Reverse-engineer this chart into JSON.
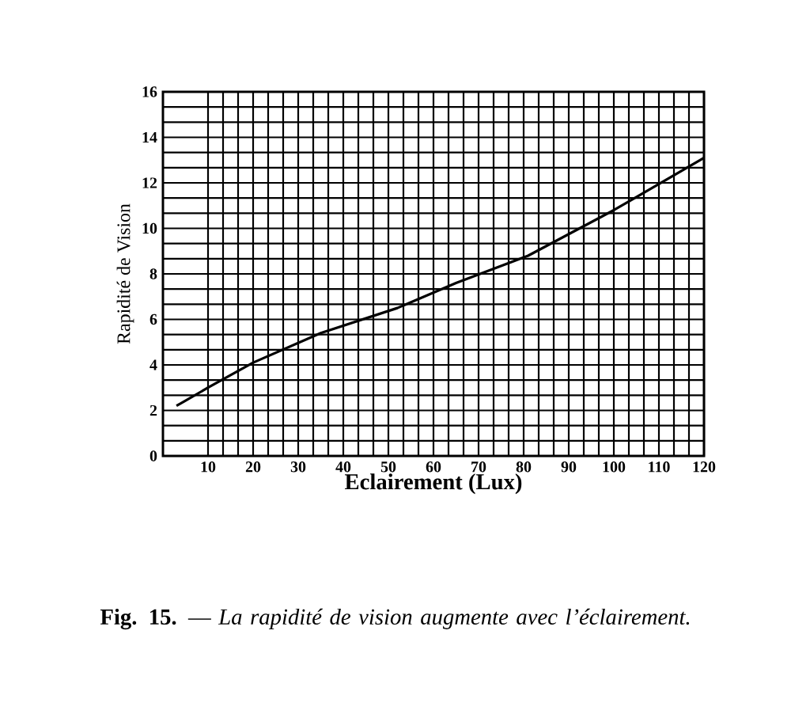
{
  "chart_data": {
    "type": "line",
    "xlabel": "Eclairement (Lux)",
    "ylabel": "Rapidité de Vision",
    "x": [
      3,
      10,
      20,
      35,
      52,
      65,
      81,
      100,
      120
    ],
    "series": [
      {
        "color": "#000000",
        "values": [
          2.2,
          3.0,
          4.1,
          5.4,
          6.5,
          7.6,
          8.8,
          10.8,
          13.1
        ]
      }
    ],
    "xlim": [
      0,
      120
    ],
    "ylim": [
      0,
      16
    ],
    "xticks": [
      10,
      20,
      30,
      40,
      50,
      60,
      70,
      80,
      90,
      100,
      110,
      120
    ],
    "yticks": [
      0,
      2,
      4,
      6,
      8,
      10,
      12,
      14,
      16
    ],
    "grid": true,
    "marker": "none",
    "line_style": "solid",
    "annotations": [
      "**Fig. 15.** — *La rapidité de vision augmente avec l’éclairement.*"
    ]
  }
}
